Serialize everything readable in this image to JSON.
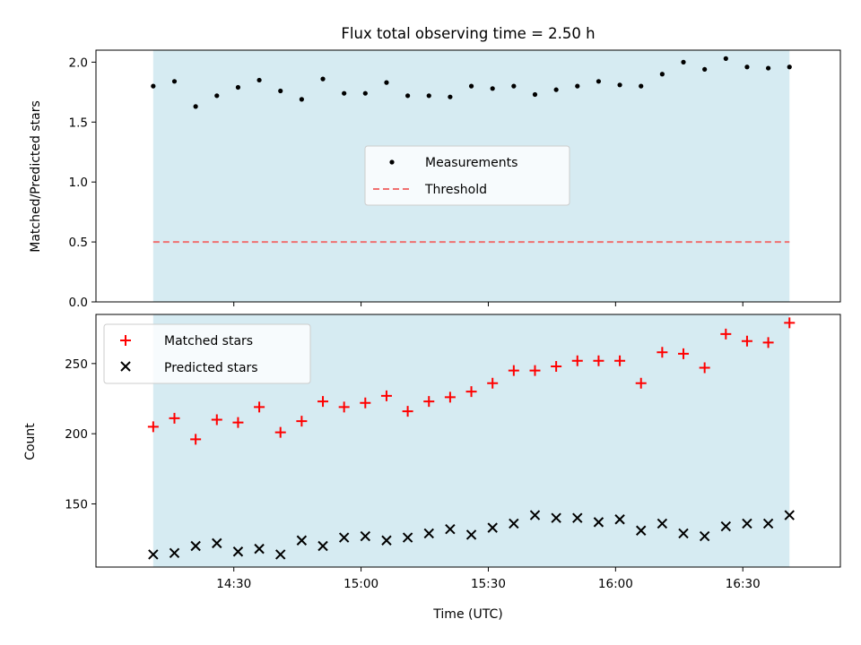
{
  "chart_data": [
    {
      "type": "scatter",
      "title": "Flux total observing time = 2.50 h",
      "xlabel": "",
      "ylabel": "Matched/Predicted stars",
      "ylim": [
        0,
        2.1
      ],
      "yticks": [
        "0.0",
        "0.5",
        "1.0",
        "1.5",
        "2.0"
      ],
      "shaded_interval": [
        "14:11",
        "16:41"
      ],
      "shade_color": "#add8e6",
      "x": [
        "14:11",
        "14:16",
        "14:21",
        "14:26",
        "14:31",
        "14:36",
        "14:41",
        "14:46",
        "14:51",
        "14:56",
        "15:01",
        "15:06",
        "15:11",
        "15:16",
        "15:21",
        "15:26",
        "15:31",
        "15:36",
        "15:41",
        "15:46",
        "15:51",
        "15:56",
        "16:01",
        "16:06",
        "16:11",
        "16:16",
        "16:21",
        "16:26",
        "16:31",
        "16:36",
        "16:41"
      ],
      "series": [
        {
          "name": "Measurements",
          "marker": "dot",
          "color": "#000000",
          "values": [
            1.8,
            1.84,
            1.63,
            1.72,
            1.79,
            1.85,
            1.76,
            1.69,
            1.86,
            1.74,
            1.74,
            1.83,
            1.72,
            1.72,
            1.71,
            1.8,
            1.78,
            1.8,
            1.73,
            1.77,
            1.8,
            1.84,
            1.81,
            1.8,
            1.9,
            2.0,
            1.94,
            2.03,
            1.96,
            1.95,
            1.96
          ]
        },
        {
          "name": "Threshold",
          "marker": "dashed-line",
          "color": "#f07070",
          "values": [
            0.5,
            0.5
          ]
        }
      ],
      "legend": {
        "position": "center",
        "entries": [
          "Measurements",
          "Threshold"
        ]
      }
    },
    {
      "type": "scatter",
      "title": "",
      "xlabel": "Time (UTC)",
      "ylabel": "Count",
      "ylim": [
        105,
        285
      ],
      "yticks": [
        "150",
        "200",
        "250"
      ],
      "xticks": [
        "14:30",
        "15:00",
        "15:30",
        "16:00",
        "16:30"
      ],
      "shaded_interval": [
        "14:11",
        "16:41"
      ],
      "shade_color": "#add8e6",
      "x": [
        "14:11",
        "14:16",
        "14:21",
        "14:26",
        "14:31",
        "14:36",
        "14:41",
        "14:46",
        "14:51",
        "14:56",
        "15:01",
        "15:06",
        "15:11",
        "15:16",
        "15:21",
        "15:26",
        "15:31",
        "15:36",
        "15:41",
        "15:46",
        "15:51",
        "15:56",
        "16:01",
        "16:06",
        "16:11",
        "16:16",
        "16:21",
        "16:26",
        "16:31",
        "16:36",
        "16:41"
      ],
      "series": [
        {
          "name": "Matched stars",
          "marker": "plus",
          "color": "#ff0000",
          "values": [
            205,
            211,
            196,
            210,
            208,
            219,
            201,
            209,
            223,
            219,
            222,
            227,
            216,
            223,
            226,
            230,
            236,
            245,
            245,
            248,
            252,
            252,
            252,
            236,
            258,
            257,
            247,
            271,
            266,
            265,
            279
          ]
        },
        {
          "name": "Predicted stars",
          "marker": "x",
          "color": "#000000",
          "values": [
            114,
            115,
            120,
            122,
            116,
            118,
            114,
            124,
            120,
            126,
            127,
            124,
            126,
            129,
            132,
            128,
            133,
            136,
            142,
            140,
            140,
            137,
            139,
            131,
            136,
            129,
            127,
            134,
            136,
            136,
            142
          ]
        }
      ],
      "legend": {
        "position": "top-left",
        "entries": [
          "Matched stars",
          "Predicted stars"
        ]
      }
    }
  ]
}
